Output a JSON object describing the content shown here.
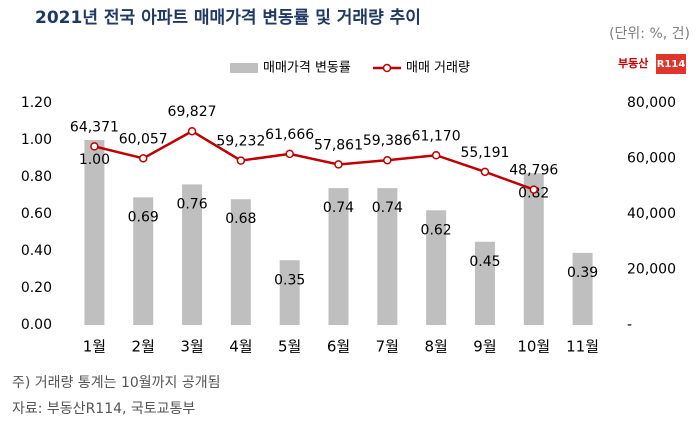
{
  "chart_data": {
    "type": "bar_line",
    "title": "2021년 전국 아파트 매매가격 변동률 및 거래량 추이",
    "subtitle": "(단위: %, 건)",
    "logo": {
      "text": "부동산",
      "badge": "R114"
    },
    "categories": [
      "1월",
      "2월",
      "3월",
      "4월",
      "5월",
      "6월",
      "7월",
      "8월",
      "9월",
      "10월",
      "11월"
    ],
    "series": [
      {
        "name": "매매가격 변동률",
        "type": "bar",
        "color": "#bfbfbf",
        "values": [
          1.0,
          0.69,
          0.76,
          0.68,
          0.35,
          0.74,
          0.74,
          0.62,
          0.45,
          0.82,
          0.39
        ],
        "value_labels": [
          "1.00",
          "0.69",
          "0.76",
          "0.68",
          "0.35",
          "0.74",
          "0.74",
          "0.62",
          "0.45",
          "0.82",
          "0.39"
        ]
      },
      {
        "name": "매매 거래량",
        "type": "line",
        "axis": "y2",
        "color": "#c00000",
        "values": [
          64371,
          60057,
          69827,
          59232,
          61666,
          57861,
          59386,
          61170,
          55191,
          48796,
          null
        ],
        "value_labels": [
          "64,371",
          "60,057",
          "69,827",
          "59,232",
          "61,666",
          "57,861",
          "59,386",
          "61,170",
          "55,191",
          "48,796",
          null
        ]
      }
    ],
    "ylim": [
      0,
      1.2
    ],
    "yticks": [
      {
        "value": 0,
        "label": "0.00"
      },
      {
        "value": 0.2,
        "label": "0.20"
      },
      {
        "value": 0.4,
        "label": "0.40"
      },
      {
        "value": 0.6,
        "label": "0.60"
      },
      {
        "value": 0.8,
        "label": "0.80"
      },
      {
        "value": 1.0,
        "label": "1.00"
      },
      {
        "value": 1.2,
        "label": "1.20"
      }
    ],
    "y2lim": [
      0,
      80000
    ],
    "y2ticks": [
      {
        "value": 0,
        "label": "-"
      },
      {
        "value": 20000,
        "label": "20,000"
      },
      {
        "value": 40000,
        "label": "40,000"
      },
      {
        "value": 60000,
        "label": "60,000"
      },
      {
        "value": 80000,
        "label": "80,000"
      }
    ],
    "legend": "top",
    "notes": [
      "주) 거래량 통계는 10월까지 공개됨",
      "자료: 부동산R114, 국토교통부"
    ]
  }
}
